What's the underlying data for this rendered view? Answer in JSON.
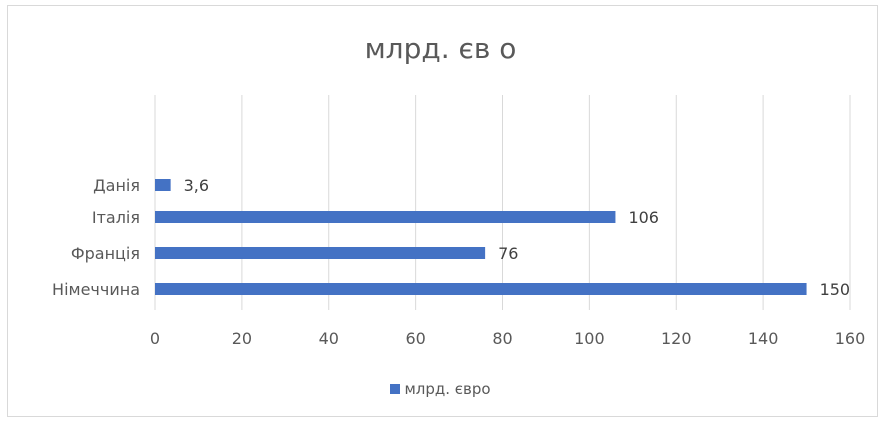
{
  "chart_data": {
    "type": "bar",
    "orientation": "horizontal",
    "title": "млрд. єв о",
    "categories": [
      "Німеччина",
      "Франція",
      "Італія",
      "Данія"
    ],
    "series": [
      {
        "name": "млрд. євро",
        "values": [
          150,
          76,
          106,
          3.6
        ],
        "data_labels": [
          "150",
          "76",
          "106",
          "3,6"
        ],
        "color": "#4472c4"
      }
    ],
    "xlim": [
      0,
      160
    ],
    "x_ticks": [
      0,
      20,
      40,
      60,
      80,
      100,
      120,
      140,
      160
    ],
    "grid": true,
    "legend_position": "bottom"
  },
  "colors": {
    "bar": "#4472c4",
    "grid": "#d9d9d9",
    "text": "#595959"
  }
}
